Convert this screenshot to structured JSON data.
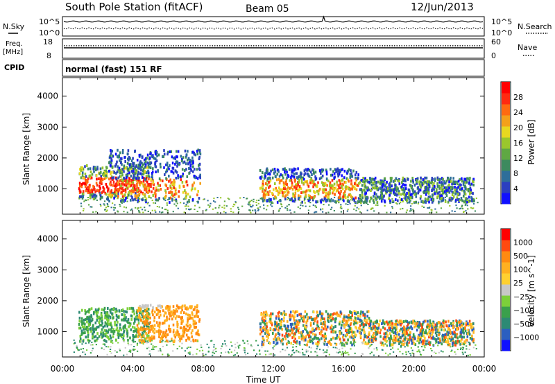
{
  "header": {
    "station": "South Pole Station (fitACF)",
    "beam": "Beam 05",
    "date": "12/Jun/2013"
  },
  "top_panels": {
    "nsky_label": "N.Sky",
    "nsearch_label": "N.Search",
    "sky_exp_low": "10^0",
    "sky_exp_high": "10^5",
    "freq_label": "Freq.",
    "freq_unit": "[MHz]",
    "freq_ticks": [
      "18",
      "8"
    ],
    "nave_ticks": [
      "60",
      "0"
    ],
    "nave_label": "Nave",
    "cpid_label": "CPID",
    "cpid_text": "normal (fast) 151 RF"
  },
  "chart_data": [
    {
      "type": "heatmap",
      "panel": "power",
      "ylabel": "Slant Range [km]",
      "xlabel": "Time UT",
      "xlim": [
        0,
        24
      ],
      "ylim": [
        180,
        4600
      ],
      "y_ticks": [
        1000,
        2000,
        3000,
        4000
      ],
      "x_ticks": [
        "00:00",
        "04:00",
        "08:00",
        "12:00",
        "16:00",
        "20:00",
        "00:00"
      ],
      "colorbar": {
        "label": "Power [dB]",
        "ticks": [
          "28",
          "24",
          "20",
          "16",
          "12",
          "8",
          "4"
        ],
        "colors": [
          "#1010ff",
          "#2b3fc0",
          "#2e6e9a",
          "#3d8a5e",
          "#5fa843",
          "#9ac72c",
          "#e8d820",
          "#f4a01a",
          "#ff6a10",
          "#ff2a10",
          "#ff0000"
        ]
      },
      "echo_regions": [
        {
          "t_start": 0.9,
          "t_end": 4.9,
          "r_min": 700,
          "r_max": 1800,
          "value": "strong"
        },
        {
          "t_start": 2.6,
          "t_end": 7.8,
          "r_min": 600,
          "r_max": 2300,
          "value": "moderate"
        },
        {
          "t_start": 11.2,
          "t_end": 16.8,
          "r_min": 600,
          "r_max": 1700,
          "value": "moderate"
        },
        {
          "t_start": 16.8,
          "t_end": 23.4,
          "r_min": 600,
          "r_max": 1400,
          "value": "weak"
        }
      ]
    },
    {
      "type": "heatmap",
      "panel": "velocity",
      "ylabel": "Slant Range [km]",
      "xlabel": "Time UT",
      "xlim": [
        0,
        24
      ],
      "ylim": [
        180,
        4600
      ],
      "y_ticks": [
        1000,
        2000,
        3000,
        4000
      ],
      "x_ticks": [
        "00:00",
        "04:00",
        "08:00",
        "12:00",
        "16:00",
        "20:00",
        "00:00"
      ],
      "colorbar": {
        "label": "Velocity [m s^-1]",
        "ticks": [
          "1000",
          "500",
          "100",
          "25",
          "-25",
          "-100",
          "-500",
          "-1000"
        ],
        "colors": [
          "#1010ff",
          "#2c5fc0",
          "#2d8a74",
          "#3aa04c",
          "#7cd03a",
          "#c8c8c8",
          "#ffd030",
          "#ffb020",
          "#ff8a10",
          "#ff4a10",
          "#ff0000"
        ]
      },
      "echo_regions": [
        {
          "t_start": 0.9,
          "t_end": 4.9,
          "r_min": 700,
          "r_max": 1800,
          "value": "low"
        },
        {
          "t_start": 4.2,
          "t_end": 7.8,
          "r_min": 700,
          "r_max": 1900,
          "value": "negative"
        },
        {
          "t_start": 11.2,
          "t_end": 17.5,
          "r_min": 600,
          "r_max": 1700,
          "value": "mixed"
        },
        {
          "t_start": 17.5,
          "t_end": 23.4,
          "r_min": 600,
          "r_max": 1400,
          "value": "mixed"
        }
      ]
    }
  ],
  "time_axis": {
    "ticks": [
      "00:00",
      "04:00",
      "08:00",
      "12:00",
      "16:00",
      "20:00",
      "00:00"
    ],
    "label": "Time UT"
  }
}
